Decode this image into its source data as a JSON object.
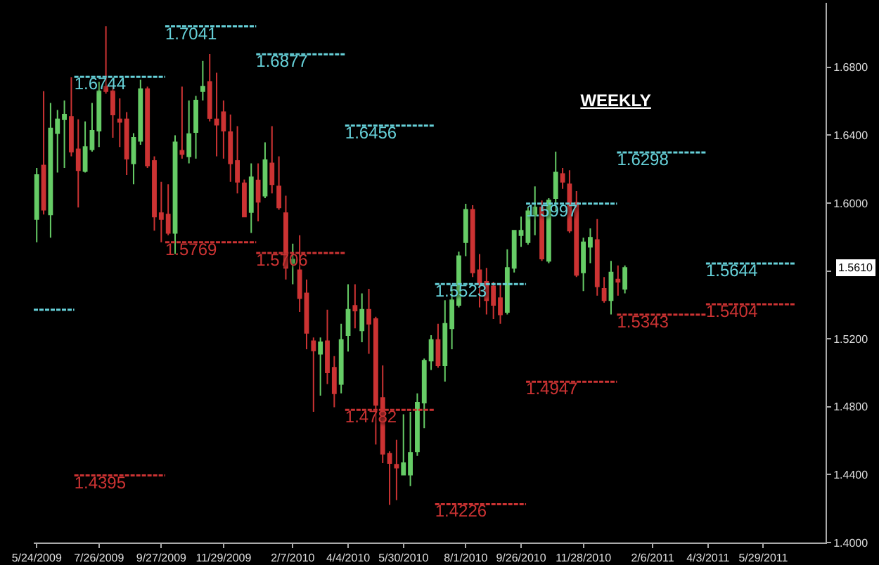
{
  "chart_data": {
    "type": "candlestick",
    "title": "WEEKLY",
    "line_style": "dashed",
    "x": [
      "2009-05-24",
      "2009-05-31",
      "2009-06-07",
      "2009-06-14",
      "2009-06-21",
      "2009-06-28",
      "2009-07-05",
      "2009-07-12",
      "2009-07-19",
      "2009-07-26",
      "2009-08-02",
      "2009-08-09",
      "2009-08-16",
      "2009-08-23",
      "2009-08-30",
      "2009-09-06",
      "2009-09-13",
      "2009-09-20",
      "2009-09-27",
      "2009-10-04",
      "2009-10-11",
      "2009-10-18",
      "2009-10-25",
      "2009-11-01",
      "2009-11-08",
      "2009-11-15",
      "2009-11-22",
      "2009-11-29",
      "2009-12-06",
      "2009-12-13",
      "2009-12-20",
      "2009-12-27",
      "2010-01-03",
      "2010-01-10",
      "2010-01-17",
      "2010-01-24",
      "2010-01-31",
      "2010-02-07",
      "2010-02-14",
      "2010-02-21",
      "2010-02-28",
      "2010-03-07",
      "2010-03-14",
      "2010-03-21",
      "2010-03-28",
      "2010-04-04",
      "2010-04-11",
      "2010-04-18",
      "2010-04-25",
      "2010-05-02",
      "2010-05-09",
      "2010-05-16",
      "2010-05-23",
      "2010-05-30",
      "2010-06-06",
      "2010-06-13",
      "2010-06-20",
      "2010-06-27",
      "2010-07-04",
      "2010-07-11",
      "2010-07-18",
      "2010-07-25",
      "2010-08-01",
      "2010-08-08",
      "2010-08-15",
      "2010-08-22",
      "2010-08-29",
      "2010-09-05",
      "2010-09-12",
      "2010-09-19",
      "2010-09-26",
      "2010-10-03",
      "2010-10-10",
      "2010-10-17",
      "2010-10-24",
      "2010-10-31",
      "2010-11-07",
      "2010-11-14",
      "2010-11-21",
      "2010-11-28",
      "2010-12-05",
      "2010-12-12",
      "2010-12-19",
      "2010-12-26",
      "2011-01-02",
      "2011-01-09"
    ],
    "ohlc": [
      [
        1.5906,
        1.6207,
        1.5769,
        1.6166
      ],
      [
        1.6221,
        1.6659,
        1.5933,
        1.5961
      ],
      [
        1.5933,
        1.659,
        1.5796,
        1.644
      ],
      [
        1.6412,
        1.6549,
        1.618,
        1.6494
      ],
      [
        1.6494,
        1.6604,
        1.6207,
        1.6522
      ],
      [
        1.6508,
        1.6741,
        1.6275,
        1.6303
      ],
      [
        1.6317,
        1.6494,
        1.5974,
        1.6193
      ],
      [
        1.6188,
        1.6481,
        1.618,
        1.633
      ],
      [
        1.6317,
        1.659,
        1.6303,
        1.6426
      ],
      [
        1.6426,
        1.6714,
        1.633,
        1.6659
      ],
      [
        1.6686,
        1.7042,
        1.6645,
        1.6659
      ],
      [
        1.6659,
        1.6686,
        1.6385,
        1.6522
      ],
      [
        1.6494,
        1.6617,
        1.633,
        1.6478
      ],
      [
        1.6494,
        1.6536,
        1.6166,
        1.6262
      ],
      [
        1.6234,
        1.6412,
        1.6111,
        1.6385
      ],
      [
        1.6366,
        1.6727,
        1.6344,
        1.6672
      ],
      [
        1.6672,
        1.6686,
        1.6207,
        1.6221
      ],
      [
        1.6248,
        1.6275,
        1.5837,
        1.592
      ],
      [
        1.5941,
        1.6125,
        1.5769,
        1.5906
      ],
      [
        1.5933,
        1.6111,
        1.581,
        1.5824
      ],
      [
        1.5824,
        1.6399,
        1.57,
        1.6358
      ],
      [
        1.6308,
        1.6686,
        1.6262,
        1.6289
      ],
      [
        1.6275,
        1.6604,
        1.6234,
        1.6407
      ],
      [
        1.6418,
        1.6631,
        1.6262,
        1.6604
      ],
      [
        1.6659,
        1.6837,
        1.6604,
        1.6686
      ],
      [
        1.6714,
        1.6878,
        1.6481,
        1.6501
      ],
      [
        1.6494,
        1.6768,
        1.6275,
        1.6462
      ],
      [
        1.6536,
        1.6604,
        1.6262,
        1.6426
      ],
      [
        1.6418,
        1.6522,
        1.6125,
        1.6234
      ],
      [
        1.6248,
        1.6453,
        1.6057,
        1.6125
      ],
      [
        1.6117,
        1.6139,
        1.592,
        1.592
      ],
      [
        1.5947,
        1.6234,
        1.5824,
        1.6152
      ],
      [
        1.6133,
        1.6234,
        1.5892,
        1.6007
      ],
      [
        1.6043,
        1.6358,
        1.6029,
        1.6254
      ],
      [
        1.6234,
        1.6453,
        1.6057,
        1.6111
      ],
      [
        1.6098,
        1.6275,
        1.5961,
        1.5974
      ],
      [
        1.5941,
        1.6043,
        1.555,
        1.5618
      ],
      [
        1.5646,
        1.5761,
        1.5522,
        1.5668
      ],
      [
        1.5605,
        1.581,
        1.5358,
        1.544
      ],
      [
        1.5468,
        1.555,
        1.5139,
        1.5235
      ],
      [
        1.5186,
        1.5208,
        1.477,
        1.5131
      ],
      [
        1.5112,
        1.5208,
        1.4865,
        1.518
      ],
      [
        1.5186,
        1.5372,
        1.4934,
        1.5002
      ],
      [
        1.503,
        1.5098,
        1.4797,
        1.4879
      ],
      [
        1.4934,
        1.5289,
        1.4879,
        1.5194
      ],
      [
        1.5221,
        1.5522,
        1.5125,
        1.5372
      ],
      [
        1.5394,
        1.5522,
        1.5262,
        1.5366
      ],
      [
        1.5249,
        1.5468,
        1.518,
        1.5372
      ],
      [
        1.5372,
        1.5495,
        1.5112,
        1.5289
      ],
      [
        1.5317,
        1.533,
        1.4578,
        1.4811
      ],
      [
        1.4852,
        1.5043,
        1.4468,
        1.4523
      ],
      [
        1.4523,
        1.4537,
        1.4222,
        1.4468
      ],
      [
        1.4459,
        1.4606,
        1.4249,
        1.4441
      ],
      [
        1.44,
        1.4756,
        1.44,
        1.4468
      ],
      [
        1.44,
        1.477,
        1.4332,
        1.4529
      ],
      [
        1.4537,
        1.4879,
        1.451,
        1.4824
      ],
      [
        1.4824,
        1.5084,
        1.4674,
        1.5071
      ],
      [
        1.5071,
        1.5221,
        1.5016,
        1.5194
      ],
      [
        1.5194,
        1.5289,
        1.503,
        1.5043
      ],
      [
        1.5043,
        1.5427,
        1.4948,
        1.5289
      ],
      [
        1.5262,
        1.5509,
        1.5139,
        1.5427
      ],
      [
        1.5399,
        1.5714,
        1.5385,
        1.5687
      ],
      [
        1.5769,
        1.5996,
        1.5687,
        1.5961
      ],
      [
        1.5961,
        1.5988,
        1.5564,
        1.5591
      ],
      [
        1.5605,
        1.57,
        1.5385,
        1.5522
      ],
      [
        1.5536,
        1.5618,
        1.5344,
        1.5427
      ],
      [
        1.5509,
        1.5536,
        1.5317,
        1.5399
      ],
      [
        1.544,
        1.5522,
        1.5289,
        1.5344
      ],
      [
        1.5358,
        1.5728,
        1.5344,
        1.5618
      ],
      [
        1.5618,
        1.5837,
        1.5591,
        1.5837
      ],
      [
        1.581,
        1.592,
        1.5742,
        1.5837
      ],
      [
        1.5769,
        1.5974,
        1.5755,
        1.5952
      ],
      [
        1.5925,
        1.6098,
        1.581,
        1.5974
      ],
      [
        1.5974,
        1.6015,
        1.5659,
        1.5673
      ],
      [
        1.5659,
        1.6029,
        1.5646,
        1.6015
      ],
      [
        1.6029,
        1.6303,
        1.5947,
        1.618
      ],
      [
        1.6172,
        1.6207,
        1.6084,
        1.6125
      ],
      [
        1.6111,
        1.6193,
        1.5824,
        1.5837
      ],
      [
        1.6002,
        1.607,
        1.5564,
        1.5577
      ],
      [
        1.5591,
        1.5796,
        1.5481,
        1.5769
      ],
      [
        1.5742,
        1.5851,
        1.5646,
        1.5796
      ],
      [
        1.5783,
        1.5906,
        1.5454,
        1.5509
      ],
      [
        1.5495,
        1.5564,
        1.5413,
        1.5427
      ],
      [
        1.5427,
        1.5659,
        1.5344,
        1.5591
      ],
      [
        1.555,
        1.5632,
        1.5454,
        1.5536
      ],
      [
        1.5495,
        1.5632,
        1.5468,
        1.5618
      ]
    ],
    "colors": [
      "#66cc66",
      "#cc3333",
      "#66cc66",
      "#66cc66",
      "#66cc66",
      "#cc3333",
      "#cc3333",
      "#66cc66",
      "#66cc66",
      "#66cc66",
      "#cc3333",
      "#cc3333",
      "#cc3333",
      "#cc3333",
      "#66cc66",
      "#66cc66",
      "#cc3333",
      "#cc3333",
      "#cc3333",
      "#cc3333",
      "#66cc66",
      "#cc3333",
      "#66cc66",
      "#66cc66",
      "#66cc66",
      "#cc3333",
      "#cc3333",
      "#cc3333",
      "#cc3333",
      "#cc3333",
      "#cc3333",
      "#66cc66",
      "#cc3333",
      "#66cc66",
      "#cc3333",
      "#cc3333",
      "#cc3333",
      "#66cc66",
      "#cc3333",
      "#cc3333",
      "#cc3333",
      "#66cc66",
      "#cc3333",
      "#cc3333",
      "#66cc66",
      "#66cc66",
      "#cc3333",
      "#66cc66",
      "#cc3333",
      "#cc3333",
      "#cc3333",
      "#cc3333",
      "#cc3333",
      "#66cc66",
      "#66cc66",
      "#66cc66",
      "#66cc66",
      "#66cc66",
      "#cc3333",
      "#66cc66",
      "#66cc66",
      "#66cc66",
      "#66cc66",
      "#cc3333",
      "#cc3333",
      "#cc3333",
      "#cc3333",
      "#cc3333",
      "#66cc66",
      "#66cc66",
      "#66cc66",
      "#66cc66",
      "#66cc66",
      "#cc3333",
      "#66cc66",
      "#66cc66",
      "#cc3333",
      "#cc3333",
      "#cc3333",
      "#66cc66",
      "#66cc66",
      "#cc3333",
      "#cc3333",
      "#66cc66",
      "#cc3333",
      "#66cc66"
    ],
    "series": [
      {
        "type": "line",
        "color": "#66d0d8",
        "x": [
          "2009-05-21",
          "2009-07-01"
        ],
        "values": [
          1.5372,
          1.5372
        ]
      },
      {
        "type": "line",
        "name": "1.6744",
        "color": "#66d0d8",
        "x": [
          "2009-07-01",
          "2009-10-01"
        ],
        "values": [
          1.6744,
          1.6744
        ]
      },
      {
        "type": "line",
        "name": "1.4395",
        "color": "#cc3333",
        "x": [
          "2009-07-01",
          "2009-10-01"
        ],
        "values": [
          1.4395,
          1.4395
        ]
      },
      {
        "type": "line",
        "name": "1.7041",
        "color": "#66d0d8",
        "x": [
          "2009-10-01",
          "2010-01-01"
        ],
        "values": [
          1.7041,
          1.7041
        ]
      },
      {
        "type": "line",
        "name": "1.5769",
        "color": "#cc3333",
        "x": [
          "2009-10-01",
          "2010-01-01"
        ],
        "values": [
          1.5769,
          1.5769
        ]
      },
      {
        "type": "line",
        "name": "1.6877",
        "color": "#66d0d8",
        "x": [
          "2010-01-01",
          "2010-04-01"
        ],
        "values": [
          1.6877,
          1.6877
        ]
      },
      {
        "type": "line",
        "name": "1.5706",
        "color": "#cc3333",
        "x": [
          "2010-01-01",
          "2010-04-01"
        ],
        "values": [
          1.5706,
          1.5706
        ]
      },
      {
        "type": "line",
        "name": "1.6456",
        "color": "#66d0d8",
        "x": [
          "2010-04-01",
          "2010-07-01"
        ],
        "values": [
          1.6456,
          1.6456
        ]
      },
      {
        "type": "line",
        "name": "1.4782",
        "color": "#cc3333",
        "x": [
          "2010-04-01",
          "2010-07-01"
        ],
        "values": [
          1.4782,
          1.4782
        ]
      },
      {
        "type": "line",
        "name": "1.5523",
        "color": "#66d0d8",
        "x": [
          "2010-07-01",
          "2010-10-01"
        ],
        "values": [
          1.5523,
          1.5523
        ]
      },
      {
        "type": "line",
        "name": "1.4226",
        "color": "#cc3333",
        "x": [
          "2010-07-01",
          "2010-10-01"
        ],
        "values": [
          1.4226,
          1.4226
        ]
      },
      {
        "type": "line",
        "name": "1.5997",
        "color": "#66d0d8",
        "x": [
          "2010-10-01",
          "2011-01-01"
        ],
        "values": [
          1.5997,
          1.5997
        ]
      },
      {
        "type": "line",
        "name": "1.4947",
        "color": "#cc3333",
        "x": [
          "2010-10-01",
          "2011-01-01"
        ],
        "values": [
          1.4947,
          1.4947
        ]
      },
      {
        "type": "line",
        "name": "1.6298",
        "color": "#66d0d8",
        "x": [
          "2011-01-01",
          "2011-04-01"
        ],
        "values": [
          1.6298,
          1.6298
        ]
      },
      {
        "type": "line",
        "name": "1.5343",
        "color": "#cc3333",
        "x": [
          "2011-01-01",
          "2011-04-01"
        ],
        "values": [
          1.5343,
          1.5343
        ]
      },
      {
        "type": "line",
        "name": "1.5644",
        "color": "#66d0d8",
        "x": [
          "2011-04-01",
          "2011-07-01"
        ],
        "values": [
          1.5644,
          1.5644
        ]
      },
      {
        "type": "line",
        "name": "1.5404",
        "color": "#cc3333",
        "x": [
          "2011-04-01",
          "2011-07-01"
        ],
        "values": [
          1.5404,
          1.5404
        ]
      }
    ],
    "annotations": [
      "1.5610"
    ],
    "xlim": [
      "2009-05-21",
      "2011-07-31"
    ],
    "xticks": [
      {
        "value": "2009-05-24",
        "label": "5/24/2009"
      },
      {
        "value": "2009-07-26",
        "label": "7/26/2009"
      },
      {
        "value": "2009-09-27",
        "label": "9/27/2009"
      },
      {
        "value": "2009-11-29",
        "label": "11/29/2009"
      },
      {
        "value": "2010-02-07",
        "label": "2/7/2010"
      },
      {
        "value": "2010-04-04",
        "label": "4/4/2010"
      },
      {
        "value": "2010-05-30",
        "label": "5/30/2010"
      },
      {
        "value": "2010-08-01",
        "label": "8/1/2010"
      },
      {
        "value": "2010-09-26",
        "label": "9/26/2010"
      },
      {
        "value": "2010-11-28",
        "label": "11/28/2010"
      },
      {
        "value": "2011-02-06",
        "label": "2/6/2011"
      },
      {
        "value": "2011-04-03",
        "label": "4/3/2011"
      },
      {
        "value": "2011-05-29",
        "label": "5/29/2011"
      }
    ],
    "ylim": [
      1.4,
      1.718
    ],
    "yticks": [
      {
        "value": 1.4,
        "label": "1.4000"
      },
      {
        "value": 1.44,
        "label": "1.4400"
      },
      {
        "value": 1.48,
        "label": "1.4800"
      },
      {
        "value": 1.52,
        "label": "1.5200"
      },
      {
        "value": 1.56,
        "label": null
      },
      {
        "value": 1.6,
        "label": "1.6000"
      },
      {
        "value": 1.64,
        "label": "1.6400"
      },
      {
        "value": 1.68,
        "label": "1.6800"
      }
    ]
  }
}
